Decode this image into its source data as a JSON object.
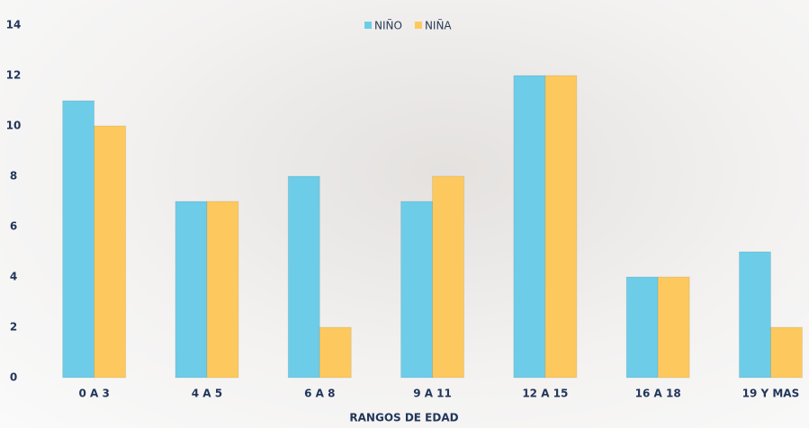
{
  "chart_data": {
    "type": "bar",
    "categories": [
      "0 A 3",
      "4 A 5",
      "6 A 8",
      "9 A 11",
      "12 A 15",
      "16 A 18",
      "19 Y MAS"
    ],
    "series": [
      {
        "name": "NIÑO",
        "color": "#6dcde8",
        "values": [
          11,
          7,
          8,
          7,
          12,
          4,
          5
        ]
      },
      {
        "name": "NIÑA",
        "color": "#fdc95e",
        "values": [
          10,
          7,
          2,
          8,
          12,
          4,
          2
        ]
      }
    ],
    "x_label": "RANGOS DE EDAD",
    "ylim": [
      0,
      14
    ],
    "yticks": [
      0,
      2,
      4,
      6,
      8,
      10,
      12,
      14
    ],
    "grid": false,
    "legend": "top"
  }
}
